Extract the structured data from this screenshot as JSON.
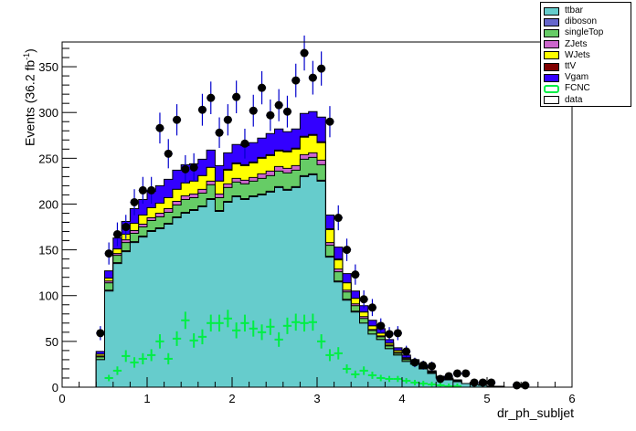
{
  "chart_data": {
    "type": "area",
    "xlabel": "dr_ph_subljet",
    "ylabel": "Events (36.2 fb",
    "ylabel_sup": "-1",
    "ylabel_tail": ")",
    "xlim": [
      0,
      6
    ],
    "ylim": [
      0,
      377
    ],
    "x_ticks": [
      "0",
      "1",
      "2",
      "3",
      "4",
      "5",
      "6"
    ],
    "y_ticks": [
      "0",
      "50",
      "100",
      "150",
      "200",
      "250",
      "300",
      "350"
    ],
    "bin_width": 0.1,
    "bin_edges": [
      0.4,
      0.5,
      0.6,
      0.7,
      0.8,
      0.9,
      1.0,
      1.1,
      1.2,
      1.3,
      1.4,
      1.5,
      1.6,
      1.7,
      1.8,
      1.9,
      2.0,
      2.1,
      2.2,
      2.3,
      2.4,
      2.5,
      2.6,
      2.7,
      2.8,
      2.9,
      3.0,
      3.1,
      3.2,
      3.3,
      3.4,
      3.5,
      3.6,
      3.7,
      3.8,
      3.9,
      4.0,
      4.1,
      4.2,
      4.3,
      4.4,
      4.5,
      4.6,
      4.7,
      4.8,
      4.9,
      5.0,
      5.1,
      5.2
    ],
    "series": [
      {
        "name": "ttbar",
        "color": "#66cccc",
        "values": [
          30,
          105,
          135,
          148,
          158,
          164,
          170,
          173,
          178,
          185,
          190,
          193,
          197,
          205,
          192,
          202,
          208,
          205,
          208,
          210,
          213,
          218,
          215,
          218,
          230,
          232,
          225,
          142,
          115,
          95,
          82,
          70,
          58,
          52,
          42,
          35,
          28,
          25,
          20,
          15,
          10,
          8,
          6,
          4,
          3,
          2,
          1,
          1
        ]
      },
      {
        "name": "diboson",
        "color": "#6666cc",
        "values": [
          0,
          1,
          1,
          1,
          1,
          1,
          1,
          1,
          1,
          1,
          1,
          1,
          1,
          1,
          1,
          1,
          1,
          1,
          1,
          1,
          1,
          1,
          1,
          1,
          1,
          1,
          1,
          1,
          1,
          1,
          1,
          0,
          0,
          0,
          0,
          0,
          0,
          0,
          0,
          0,
          0,
          0,
          0,
          0,
          0,
          0,
          0,
          0
        ]
      },
      {
        "name": "singleTop",
        "color": "#66cc66",
        "values": [
          3,
          8,
          8,
          9,
          9,
          10,
          11,
          12,
          12,
          13,
          14,
          13,
          14,
          15,
          14,
          15,
          15,
          16,
          16,
          17,
          17,
          17,
          18,
          18,
          18,
          18,
          17,
          12,
          10,
          8,
          6,
          5,
          4,
          3,
          3,
          2,
          2,
          2,
          1,
          1,
          1,
          1,
          1,
          0,
          0,
          0,
          0,
          0
        ]
      },
      {
        "name": "ZJets",
        "color": "#cc66cc",
        "values": [
          1,
          2,
          2,
          3,
          3,
          3,
          3,
          4,
          4,
          4,
          4,
          4,
          4,
          4,
          4,
          4,
          4,
          4,
          4,
          5,
          5,
          5,
          5,
          5,
          5,
          5,
          5,
          3,
          3,
          2,
          2,
          2,
          1,
          1,
          1,
          1,
          1,
          0,
          0,
          0,
          0,
          0,
          0,
          0,
          0,
          0,
          0,
          0
        ]
      },
      {
        "name": "WJets",
        "color": "#ffff00",
        "values": [
          2,
          3,
          5,
          6,
          8,
          10,
          11,
          11,
          12,
          13,
          14,
          14,
          15,
          15,
          14,
          15,
          16,
          16,
          16,
          17,
          17,
          17,
          18,
          18,
          19,
          19,
          19,
          14,
          10,
          8,
          6,
          5,
          4,
          3,
          2,
          2,
          1,
          1,
          1,
          1,
          0,
          0,
          0,
          0,
          0,
          0,
          0,
          0
        ]
      },
      {
        "name": "ttV",
        "color": "#7f0000",
        "values": [
          0,
          0,
          0,
          0,
          0,
          0,
          0,
          0,
          0,
          0,
          0,
          0,
          0,
          0,
          0,
          1,
          1,
          1,
          1,
          1,
          1,
          1,
          1,
          1,
          1,
          1,
          1,
          1,
          1,
          0,
          0,
          0,
          0,
          0,
          0,
          0,
          0,
          0,
          0,
          0,
          0,
          0,
          0,
          0,
          0,
          0,
          0,
          0
        ]
      },
      {
        "name": "Vgam",
        "color": "#3300ff",
        "values": [
          3,
          8,
          12,
          14,
          16,
          17,
          18,
          19,
          20,
          21,
          20,
          19,
          18,
          19,
          17,
          18,
          20,
          21,
          21,
          21,
          23,
          23,
          21,
          21,
          25,
          25,
          27,
          15,
          13,
          10,
          8,
          7,
          6,
          5,
          4,
          3,
          3,
          2,
          2,
          1,
          1,
          1,
          1,
          0,
          0,
          0,
          0,
          0
        ]
      }
    ],
    "data_points": {
      "name": "data",
      "x": [
        0.45,
        0.55,
        0.65,
        0.75,
        0.85,
        0.95,
        1.05,
        1.15,
        1.25,
        1.35,
        1.45,
        1.55,
        1.65,
        1.75,
        1.85,
        1.95,
        2.05,
        2.15,
        2.25,
        2.35,
        2.45,
        2.55,
        2.65,
        2.75,
        2.85,
        2.95,
        3.05,
        3.15,
        3.25,
        3.35,
        3.45,
        3.55,
        3.65,
        3.75,
        3.85,
        3.95,
        4.05,
        4.15,
        4.25,
        4.35,
        4.45,
        4.55,
        4.65,
        4.75,
        4.85,
        4.95,
        5.05,
        5.35,
        5.45
      ],
      "y": [
        59,
        146,
        167,
        175,
        202,
        215,
        215,
        283,
        255,
        292,
        238,
        240,
        303,
        316,
        278,
        292,
        317,
        266,
        302,
        327,
        297,
        308,
        301,
        335,
        365,
        338,
        348,
        290,
        185,
        150,
        123,
        96,
        87,
        67,
        58,
        59,
        39,
        27,
        24,
        23,
        9,
        12,
        15,
        15,
        5,
        5,
        5,
        2,
        2
      ]
    },
    "signal_points": {
      "name": "FCNC",
      "color": "#00ee44",
      "x": [
        0.55,
        0.65,
        0.75,
        0.85,
        0.95,
        1.05,
        1.15,
        1.25,
        1.35,
        1.45,
        1.55,
        1.65,
        1.75,
        1.85,
        1.95,
        2.05,
        2.15,
        2.25,
        2.35,
        2.45,
        2.55,
        2.65,
        2.75,
        2.85,
        2.95,
        3.05,
        3.15,
        3.25,
        3.35,
        3.45,
        3.55,
        3.65,
        3.75,
        3.85,
        3.95,
        4.05,
        4.15,
        4.25,
        4.35,
        4.45,
        4.55,
        4.65
      ],
      "y": [
        10,
        18,
        34,
        27,
        31,
        35,
        50,
        31,
        53,
        73,
        51,
        55,
        70,
        70,
        75,
        62,
        70,
        64,
        60,
        66,
        52,
        67,
        71,
        70,
        71,
        50,
        35,
        37,
        20,
        14,
        18,
        13,
        10,
        9,
        9,
        7,
        5,
        4,
        3,
        2,
        1,
        1
      ]
    },
    "legend": [
      {
        "label": "ttbar",
        "color": "#66cccc",
        "style": "fill"
      },
      {
        "label": "diboson",
        "color": "#6666cc",
        "style": "fill"
      },
      {
        "label": "singleTop",
        "color": "#66cc66",
        "style": "fill"
      },
      {
        "label": "ZJets",
        "color": "#cc66cc",
        "style": "fill"
      },
      {
        "label": "WJets",
        "color": "#ffff00",
        "style": "fill"
      },
      {
        "label": "ttV",
        "color": "#7f0000",
        "style": "fill"
      },
      {
        "label": "Vgam",
        "color": "#3300ff",
        "style": "fill"
      },
      {
        "label": "FCNC",
        "color": "#00ee44",
        "style": "line"
      },
      {
        "label": "data",
        "color": "#ffffff",
        "style": "fill"
      }
    ],
    "legend_position": "top-right"
  }
}
